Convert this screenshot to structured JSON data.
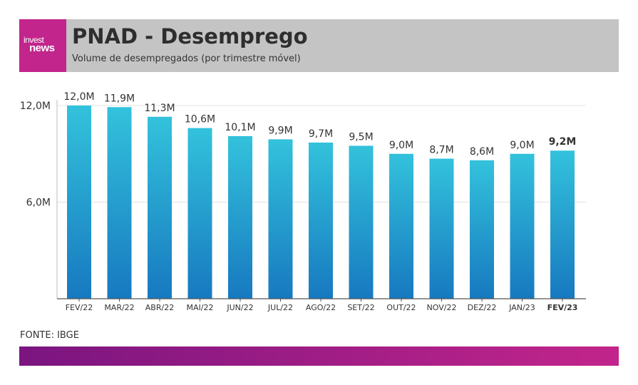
{
  "header": {
    "logo_top": "invest",
    "logo_bottom": "news",
    "title": "PNAD  -  Desemprego",
    "subtitle": "Volume de desempregados (por trimestre móvel)"
  },
  "source": "FONTE: IBGE",
  "watermark": "investnews",
  "colors": {
    "bar_top": "#33c2dc",
    "bar_bottom": "#1779c0",
    "logo_bg": "#c2258b",
    "header_bg": "#c4c4c4",
    "footer_start": "#7b1580",
    "footer_end": "#c2258b"
  },
  "chart_data": {
    "type": "bar",
    "title": "PNAD - Desemprego",
    "subtitle": "Volume de desempregados (por trimestre móvel)",
    "categories": [
      "FEV/22",
      "MAR/22",
      "ABR/22",
      "MAI/22",
      "JUN/22",
      "JUL/22",
      "AGO/22",
      "SET/22",
      "OUT/22",
      "NOV/22",
      "DEZ/22",
      "JAN/23",
      "FEV/23"
    ],
    "values": [
      12.0,
      11.9,
      11.3,
      10.6,
      10.1,
      9.9,
      9.7,
      9.5,
      9.0,
      8.7,
      8.6,
      9.0,
      9.2
    ],
    "value_labels": [
      "12,0M",
      "11,9M",
      "11,3M",
      "10,6M",
      "10,1M",
      "9,9M",
      "9,7M",
      "9,5M",
      "9,0M",
      "8,7M",
      "8,6M",
      "9,0M",
      "9,2M"
    ],
    "highlight_index": 12,
    "yticks": [
      6.0,
      12.0
    ],
    "ytick_labels": [
      "6,0M",
      "12,0M"
    ],
    "ylim": [
      0,
      12
    ],
    "xlabel": "",
    "ylabel": "",
    "grid": true
  }
}
